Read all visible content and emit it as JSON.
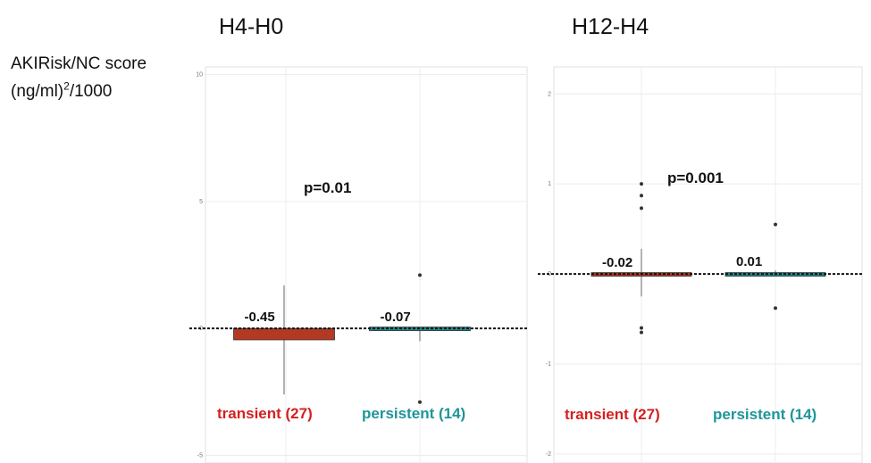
{
  "y_axis_label": {
    "line1": "AKIRisk/NC score",
    "line2_pre": "(ng/ml)",
    "line2_sup": "2",
    "line2_post": "/1000"
  },
  "colors": {
    "transient": "#b23a22",
    "persistent": "#1e8b8e",
    "transient_text": "#d42020",
    "persistent_text": "#1e9599"
  },
  "chart_data": [
    {
      "type": "bar",
      "title": "H4-H0",
      "ylim": [
        -5.3,
        10.3
      ],
      "y_ticks": [
        10,
        5,
        0,
        -5
      ],
      "y_tick_labels": [
        "10",
        "5",
        "0",
        "-5"
      ],
      "grid": true,
      "p_value": "p=0.01",
      "bars": [
        {
          "group": "transient (27)",
          "value": -0.45,
          "label": "-0.45",
          "whisker": [
            -2.6,
            1.7
          ],
          "outliers": []
        },
        {
          "group": "persistent (14)",
          "value": -0.07,
          "label": "-0.07",
          "whisker": [
            -0.5,
            0.0
          ],
          "outliers": [
            2.1,
            -2.9
          ]
        }
      ]
    },
    {
      "type": "bar",
      "title": "H12-H4",
      "ylim": [
        -2.1,
        2.3
      ],
      "y_ticks": [
        2,
        1,
        0,
        -1,
        -2
      ],
      "y_tick_labels": [
        "2",
        "1",
        "0",
        "-1",
        "-2"
      ],
      "grid": true,
      "p_value": "p=0.001",
      "bars": [
        {
          "group": "transient (27)",
          "value": -0.02,
          "label": "-0.02",
          "whisker": [
            -0.25,
            0.28
          ],
          "outliers": [
            1.0,
            0.87,
            0.73,
            -0.6,
            -0.65
          ]
        },
        {
          "group": "persistent (14)",
          "value": 0.01,
          "label": "0.01",
          "whisker": [
            -0.02,
            0.04
          ],
          "outliers": [
            0.55,
            -0.38
          ]
        }
      ]
    }
  ]
}
